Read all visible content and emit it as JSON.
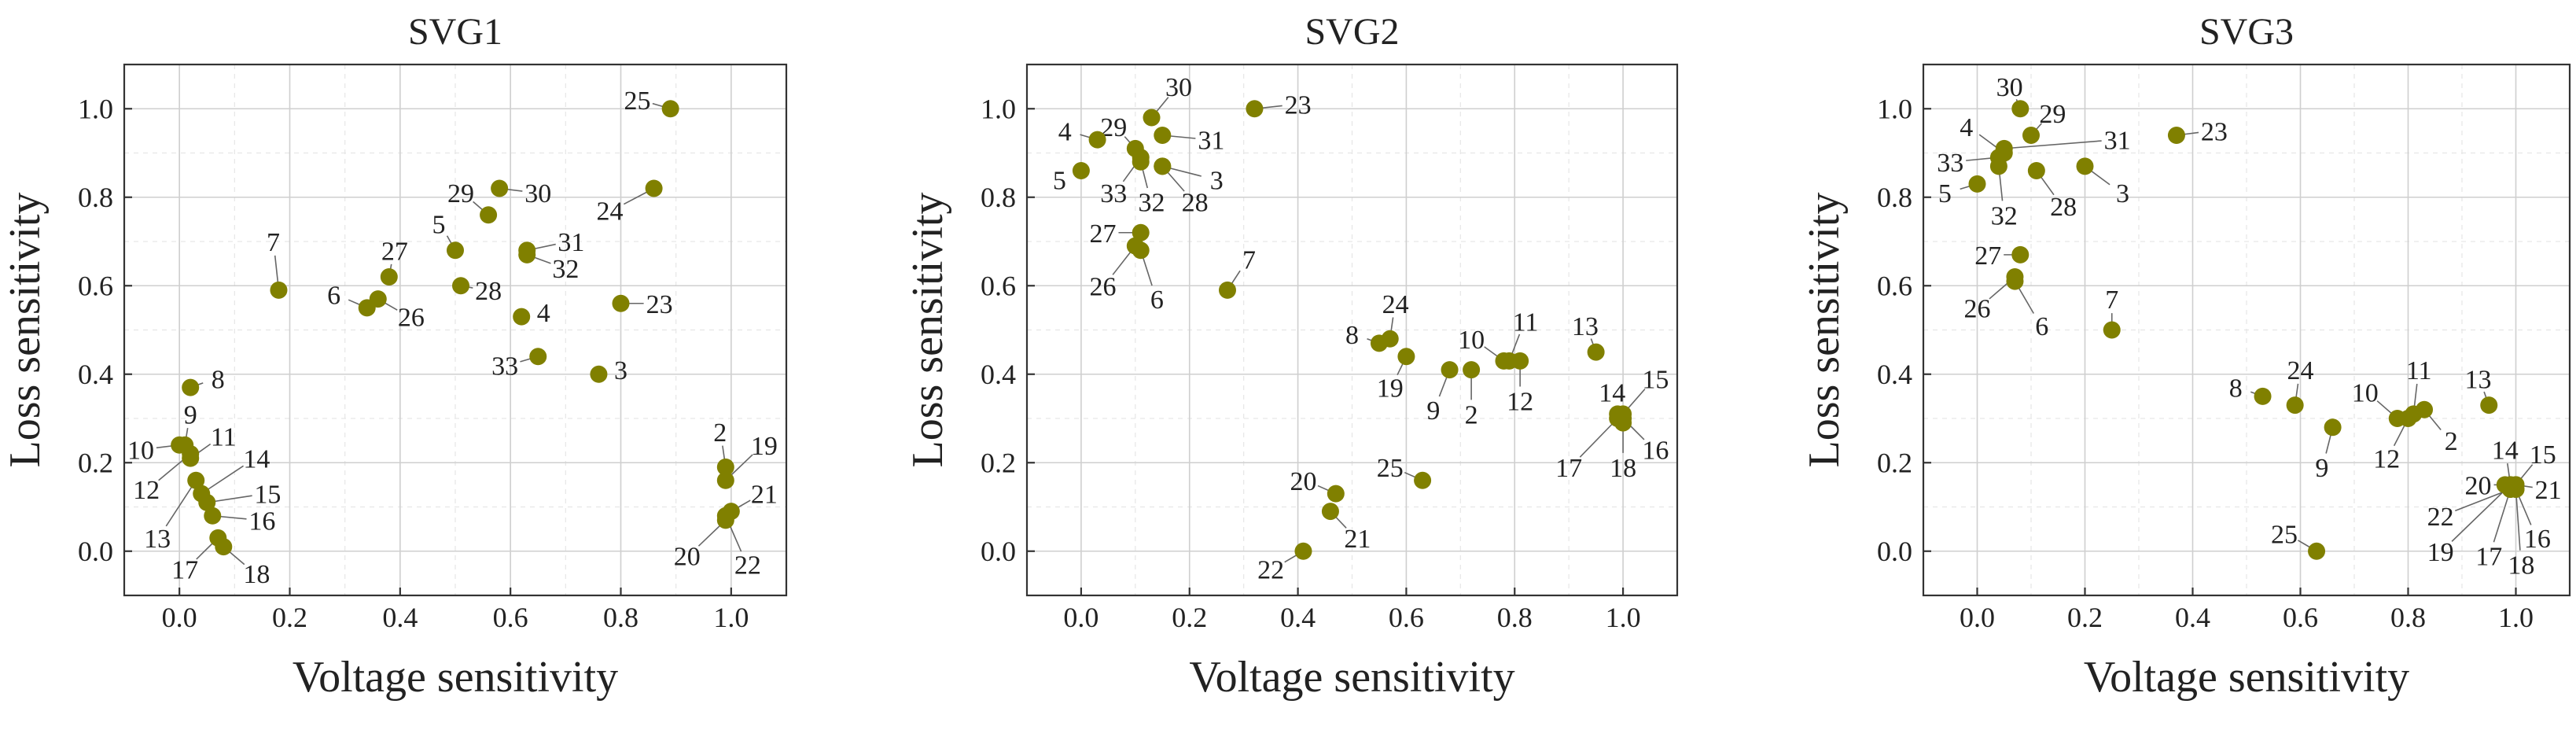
{
  "chart_data": [
    {
      "type": "scatter",
      "title": "SVG1",
      "xlabel": "Voltage sensitivity",
      "ylabel": "Loss sensitivity",
      "xlim": [
        -0.1,
        1.1
      ],
      "ylim": [
        -0.1,
        1.1
      ],
      "xticks": [
        "0.0",
        "0.2",
        "0.4",
        "0.6",
        "0.8",
        "1.0"
      ],
      "yticks": [
        "0.0",
        "0.2",
        "0.4",
        "0.6",
        "0.8",
        "1.0"
      ],
      "marker_color": "#808000",
      "points": [
        {
          "label": "2",
          "x": 0.99,
          "y": 0.19,
          "lx": 0.98,
          "ly": 0.27
        },
        {
          "label": "3",
          "x": 0.76,
          "y": 0.4,
          "lx": 0.8,
          "ly": 0.41
        },
        {
          "label": "4",
          "x": 0.62,
          "y": 0.53,
          "lx": 0.66,
          "ly": 0.54
        },
        {
          "label": "5",
          "x": 0.5,
          "y": 0.68,
          "lx": 0.47,
          "ly": 0.74
        },
        {
          "label": "6",
          "x": 0.34,
          "y": 0.55,
          "lx": 0.28,
          "ly": 0.58
        },
        {
          "label": "7",
          "x": 0.18,
          "y": 0.59,
          "lx": 0.17,
          "ly": 0.7
        },
        {
          "label": "8",
          "x": 0.02,
          "y": 0.37,
          "lx": 0.07,
          "ly": 0.39
        },
        {
          "label": "9",
          "x": 0.01,
          "y": 0.24,
          "lx": 0.02,
          "ly": 0.31
        },
        {
          "label": "10",
          "x": 0.0,
          "y": 0.24,
          "lx": -0.07,
          "ly": 0.23
        },
        {
          "label": "11",
          "x": 0.02,
          "y": 0.21,
          "lx": 0.08,
          "ly": 0.26
        },
        {
          "label": "12",
          "x": 0.02,
          "y": 0.22,
          "lx": -0.06,
          "ly": 0.14
        },
        {
          "label": "13",
          "x": 0.03,
          "y": 0.16,
          "lx": -0.04,
          "ly": 0.03
        },
        {
          "label": "14",
          "x": 0.04,
          "y": 0.13,
          "lx": 0.14,
          "ly": 0.21
        },
        {
          "label": "15",
          "x": 0.05,
          "y": 0.11,
          "lx": 0.16,
          "ly": 0.13
        },
        {
          "label": "16",
          "x": 0.06,
          "y": 0.08,
          "lx": 0.15,
          "ly": 0.07
        },
        {
          "label": "17",
          "x": 0.07,
          "y": 0.03,
          "lx": 0.01,
          "ly": -0.04
        },
        {
          "label": "18",
          "x": 0.08,
          "y": 0.01,
          "lx": 0.14,
          "ly": -0.05
        },
        {
          "label": "19",
          "x": 0.99,
          "y": 0.16,
          "lx": 1.06,
          "ly": 0.24
        },
        {
          "label": "20",
          "x": 0.99,
          "y": 0.07,
          "lx": 0.92,
          "ly": -0.01
        },
        {
          "label": "21",
          "x": 1.0,
          "y": 0.09,
          "lx": 1.06,
          "ly": 0.13
        },
        {
          "label": "22",
          "x": 0.99,
          "y": 0.08,
          "lx": 1.03,
          "ly": -0.03
        },
        {
          "label": "23",
          "x": 0.8,
          "y": 0.56,
          "lx": 0.87,
          "ly": 0.56
        },
        {
          "label": "24",
          "x": 0.86,
          "y": 0.82,
          "lx": 0.78,
          "ly": 0.77
        },
        {
          "label": "25",
          "x": 0.89,
          "y": 1.0,
          "lx": 0.83,
          "ly": 1.02
        },
        {
          "label": "26",
          "x": 0.36,
          "y": 0.57,
          "lx": 0.42,
          "ly": 0.53
        },
        {
          "label": "27",
          "x": 0.38,
          "y": 0.62,
          "lx": 0.39,
          "ly": 0.68
        },
        {
          "label": "28",
          "x": 0.51,
          "y": 0.6,
          "lx": 0.56,
          "ly": 0.59
        },
        {
          "label": "29",
          "x": 0.56,
          "y": 0.76,
          "lx": 0.51,
          "ly": 0.81
        },
        {
          "label": "30",
          "x": 0.58,
          "y": 0.82,
          "lx": 0.65,
          "ly": 0.81
        },
        {
          "label": "31",
          "x": 0.63,
          "y": 0.68,
          "lx": 0.71,
          "ly": 0.7
        },
        {
          "label": "32",
          "x": 0.63,
          "y": 0.67,
          "lx": 0.7,
          "ly": 0.64
        },
        {
          "label": "33",
          "x": 0.65,
          "y": 0.44,
          "lx": 0.59,
          "ly": 0.42
        }
      ]
    },
    {
      "type": "scatter",
      "title": "SVG2",
      "xlabel": "Voltage sensitivity",
      "ylabel": "Loss sensitivity",
      "xlim": [
        -0.1,
        1.1
      ],
      "ylim": [
        -0.1,
        1.1
      ],
      "xticks": [
        "0.0",
        "0.2",
        "0.4",
        "0.6",
        "0.8",
        "1.0"
      ],
      "yticks": [
        "0.0",
        "0.2",
        "0.4",
        "0.6",
        "0.8",
        "1.0"
      ],
      "marker_color": "#808000",
      "points": [
        {
          "label": "2",
          "x": 0.72,
          "y": 0.41,
          "lx": 0.72,
          "ly": 0.31
        },
        {
          "label": "3",
          "x": 0.15,
          "y": 0.87,
          "lx": 0.25,
          "ly": 0.84
        },
        {
          "label": "4",
          "x": 0.03,
          "y": 0.93,
          "lx": -0.03,
          "ly": 0.95
        },
        {
          "label": "5",
          "x": 0.0,
          "y": 0.86,
          "lx": -0.04,
          "ly": 0.84
        },
        {
          "label": "6",
          "x": 0.11,
          "y": 0.68,
          "lx": 0.14,
          "ly": 0.57
        },
        {
          "label": "7",
          "x": 0.27,
          "y": 0.59,
          "lx": 0.31,
          "ly": 0.66
        },
        {
          "label": "8",
          "x": 0.55,
          "y": 0.47,
          "lx": 0.5,
          "ly": 0.49
        },
        {
          "label": "9",
          "x": 0.68,
          "y": 0.41,
          "lx": 0.65,
          "ly": 0.32
        },
        {
          "label": "10",
          "x": 0.78,
          "y": 0.43,
          "lx": 0.72,
          "ly": 0.48
        },
        {
          "label": "11",
          "x": 0.79,
          "y": 0.43,
          "lx": 0.82,
          "ly": 0.52
        },
        {
          "label": "12",
          "x": 0.81,
          "y": 0.43,
          "lx": 0.81,
          "ly": 0.34
        },
        {
          "label": "13",
          "x": 0.95,
          "y": 0.45,
          "lx": 0.93,
          "ly": 0.51
        },
        {
          "label": "14",
          "x": 0.99,
          "y": 0.31,
          "lx": 0.98,
          "ly": 0.36
        },
        {
          "label": "15",
          "x": 1.0,
          "y": 0.31,
          "lx": 1.06,
          "ly": 0.39
        },
        {
          "label": "16",
          "x": 1.0,
          "y": 0.3,
          "lx": 1.06,
          "ly": 0.23
        },
        {
          "label": "17",
          "x": 0.99,
          "y": 0.3,
          "lx": 0.9,
          "ly": 0.19
        },
        {
          "label": "18",
          "x": 1.0,
          "y": 0.29,
          "lx": 1.0,
          "ly": 0.19
        },
        {
          "label": "19",
          "x": 0.6,
          "y": 0.44,
          "lx": 0.57,
          "ly": 0.37
        },
        {
          "label": "20",
          "x": 0.47,
          "y": 0.13,
          "lx": 0.41,
          "ly": 0.16
        },
        {
          "label": "21",
          "x": 0.46,
          "y": 0.09,
          "lx": 0.51,
          "ly": 0.03
        },
        {
          "label": "22",
          "x": 0.41,
          "y": 0.0,
          "lx": 0.35,
          "ly": -0.04
        },
        {
          "label": "23",
          "x": 0.32,
          "y": 1.0,
          "lx": 0.4,
          "ly": 1.01
        },
        {
          "label": "24",
          "x": 0.57,
          "y": 0.48,
          "lx": 0.58,
          "ly": 0.56
        },
        {
          "label": "25",
          "x": 0.63,
          "y": 0.16,
          "lx": 0.57,
          "ly": 0.19
        },
        {
          "label": "26",
          "x": 0.1,
          "y": 0.69,
          "lx": 0.04,
          "ly": 0.6
        },
        {
          "label": "27",
          "x": 0.11,
          "y": 0.72,
          "lx": 0.04,
          "ly": 0.72
        },
        {
          "label": "28",
          "x": 0.15,
          "y": 0.87,
          "lx": 0.21,
          "ly": 0.79
        },
        {
          "label": "29",
          "x": 0.1,
          "y": 0.91,
          "lx": 0.06,
          "ly": 0.96
        },
        {
          "label": "30",
          "x": 0.13,
          "y": 0.98,
          "lx": 0.18,
          "ly": 1.05
        },
        {
          "label": "31",
          "x": 0.15,
          "y": 0.94,
          "lx": 0.24,
          "ly": 0.93
        },
        {
          "label": "32",
          "x": 0.11,
          "y": 0.88,
          "lx": 0.13,
          "ly": 0.79
        },
        {
          "label": "33",
          "x": 0.11,
          "y": 0.89,
          "lx": 0.06,
          "ly": 0.81
        }
      ]
    },
    {
      "type": "scatter",
      "title": "SVG3",
      "xlabel": "Voltage sensitivity",
      "ylabel": "Loss sensitivity",
      "xlim": [
        -0.1,
        1.1
      ],
      "ylim": [
        -0.1,
        1.1
      ],
      "xticks": [
        "0.0",
        "0.2",
        "0.4",
        "0.6",
        "0.8",
        "1.0"
      ],
      "yticks": [
        "0.0",
        "0.2",
        "0.4",
        "0.6",
        "0.8",
        "1.0"
      ],
      "marker_color": "#808000",
      "points": [
        {
          "label": "2",
          "x": 0.83,
          "y": 0.32,
          "lx": 0.88,
          "ly": 0.25
        },
        {
          "label": "3",
          "x": 0.2,
          "y": 0.87,
          "lx": 0.27,
          "ly": 0.81
        },
        {
          "label": "4",
          "x": 0.05,
          "y": 0.9,
          "lx": -0.02,
          "ly": 0.96
        },
        {
          "label": "5",
          "x": 0.0,
          "y": 0.83,
          "lx": -0.06,
          "ly": 0.81
        },
        {
          "label": "6",
          "x": 0.07,
          "y": 0.61,
          "lx": 0.12,
          "ly": 0.51
        },
        {
          "label": "7",
          "x": 0.25,
          "y": 0.5,
          "lx": 0.25,
          "ly": 0.57
        },
        {
          "label": "8",
          "x": 0.53,
          "y": 0.35,
          "lx": 0.48,
          "ly": 0.37
        },
        {
          "label": "9",
          "x": 0.66,
          "y": 0.28,
          "lx": 0.64,
          "ly": 0.19
        },
        {
          "label": "10",
          "x": 0.78,
          "y": 0.3,
          "lx": 0.72,
          "ly": 0.36
        },
        {
          "label": "11",
          "x": 0.81,
          "y": 0.31,
          "lx": 0.82,
          "ly": 0.41
        },
        {
          "label": "12",
          "x": 0.8,
          "y": 0.3,
          "lx": 0.76,
          "ly": 0.21
        },
        {
          "label": "13",
          "x": 0.95,
          "y": 0.33,
          "lx": 0.93,
          "ly": 0.39
        },
        {
          "label": "14",
          "x": 0.99,
          "y": 0.15,
          "lx": 0.98,
          "ly": 0.23
        },
        {
          "label": "15",
          "x": 1.0,
          "y": 0.15,
          "lx": 1.05,
          "ly": 0.22
        },
        {
          "label": "16",
          "x": 1.0,
          "y": 0.14,
          "lx": 1.04,
          "ly": 0.03
        },
        {
          "label": "17",
          "x": 0.99,
          "y": 0.14,
          "lx": 0.95,
          "ly": -0.01
        },
        {
          "label": "18",
          "x": 1.0,
          "y": 0.14,
          "lx": 1.01,
          "ly": -0.03
        },
        {
          "label": "19",
          "x": 0.99,
          "y": 0.15,
          "lx": 0.86,
          "ly": 0.0
        },
        {
          "label": "20",
          "x": 0.98,
          "y": 0.15,
          "lx": 0.93,
          "ly": 0.15
        },
        {
          "label": "21",
          "x": 1.0,
          "y": 0.15,
          "lx": 1.06,
          "ly": 0.14
        },
        {
          "label": "22",
          "x": 0.99,
          "y": 0.14,
          "lx": 0.86,
          "ly": 0.08
        },
        {
          "label": "23",
          "x": 0.37,
          "y": 0.94,
          "lx": 0.44,
          "ly": 0.95
        },
        {
          "label": "24",
          "x": 0.59,
          "y": 0.33,
          "lx": 0.6,
          "ly": 0.41
        },
        {
          "label": "25",
          "x": 0.63,
          "y": 0.0,
          "lx": 0.57,
          "ly": 0.04
        },
        {
          "label": "26",
          "x": 0.07,
          "y": 0.62,
          "lx": 0.0,
          "ly": 0.55
        },
        {
          "label": "27",
          "x": 0.08,
          "y": 0.67,
          "lx": 0.02,
          "ly": 0.67
        },
        {
          "label": "28",
          "x": 0.11,
          "y": 0.86,
          "lx": 0.16,
          "ly": 0.78
        },
        {
          "label": "29",
          "x": 0.1,
          "y": 0.94,
          "lx": 0.14,
          "ly": 0.99
        },
        {
          "label": "30",
          "x": 0.08,
          "y": 1.0,
          "lx": 0.06,
          "ly": 1.05
        },
        {
          "label": "31",
          "x": 0.05,
          "y": 0.91,
          "lx": 0.26,
          "ly": 0.93
        },
        {
          "label": "32",
          "x": 0.04,
          "y": 0.87,
          "lx": 0.05,
          "ly": 0.76
        },
        {
          "label": "33",
          "x": 0.04,
          "y": 0.89,
          "lx": -0.05,
          "ly": 0.88
        }
      ]
    }
  ]
}
